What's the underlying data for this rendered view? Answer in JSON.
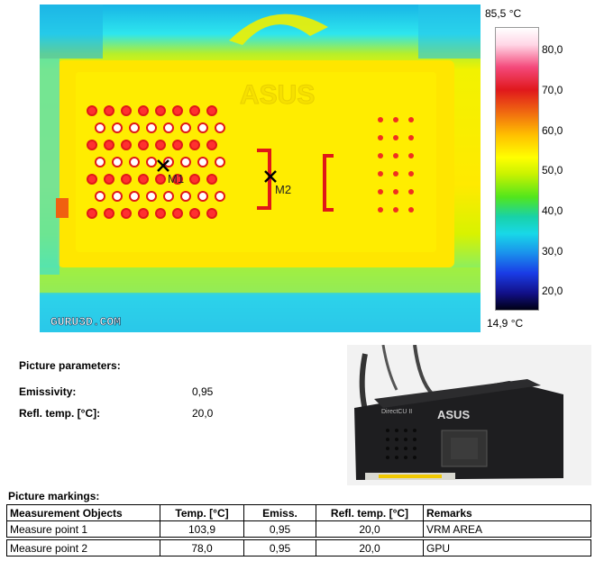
{
  "thermal": {
    "watermark": "GURU3D.COM",
    "card_logo": "ASUS",
    "markers": [
      {
        "id": "M1",
        "label": "M1"
      },
      {
        "id": "M2",
        "label": "M2"
      }
    ]
  },
  "scale": {
    "max_label": "85,5 °C",
    "min_label": "14,9 °C",
    "ticks": [
      "80,0",
      "70,0",
      "60,0",
      "50,0",
      "40,0",
      "30,0",
      "20,0"
    ]
  },
  "parameters": {
    "heading": "Picture parameters:",
    "emissivity_label": "Emissivity:",
    "emissivity_value": "0,95",
    "refl_label": "Refl. temp. [°C]:",
    "refl_value": "20,0"
  },
  "photo": {
    "logo": "ASUS",
    "series": "DirectCU II"
  },
  "markings": {
    "heading": "Picture markings:",
    "columns": [
      "Measurement Objects",
      "Temp. [°C]",
      "Emiss.",
      "Refl. temp. [°C]",
      "Remarks"
    ],
    "rows": [
      {
        "object": "Measure point 1",
        "temp": "103,9",
        "emiss": "0,95",
        "refl": "20,0",
        "remarks": "VRM AREA"
      },
      {
        "object": "Measure point 2",
        "temp": "78,0",
        "emiss": "0,95",
        "refl": "20,0",
        "remarks": "GPU"
      }
    ]
  }
}
